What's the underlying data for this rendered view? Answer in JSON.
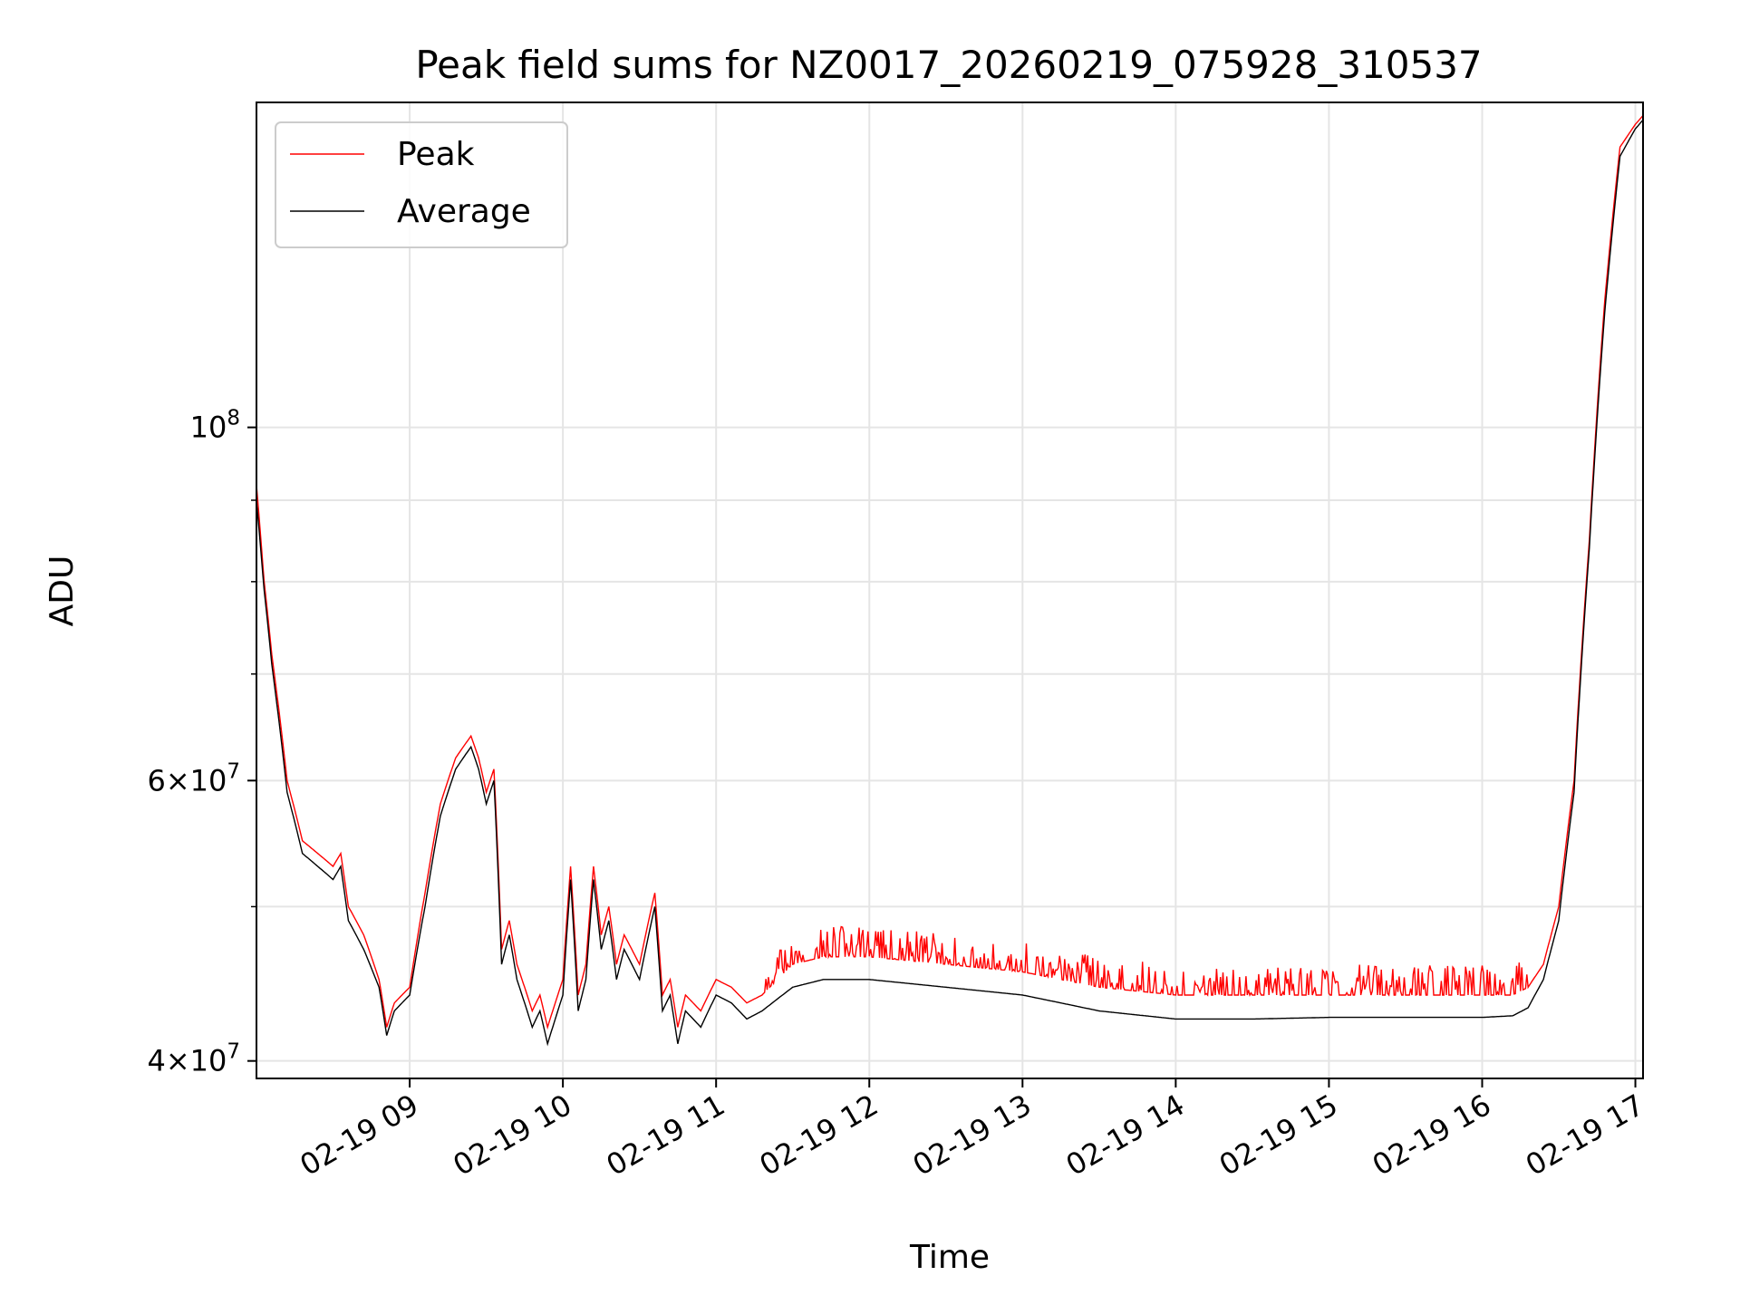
{
  "chart_data": {
    "type": "line",
    "title": "Peak field sums for NZ0017_20260219_075928_310537",
    "xlabel": "Time",
    "ylabel": "ADU",
    "yscale": "log",
    "ylim": [
      39000000,
      160000000
    ],
    "xlim_hours": [
      8.0,
      17.05
    ],
    "grid": true,
    "legend_location": "upper-left",
    "colors": {
      "peak": "#ff0000",
      "average": "#000000",
      "grid": "#e5e5e5"
    },
    "x_ticks": [
      {
        "hour": 9,
        "label": "02-19 09"
      },
      {
        "hour": 10,
        "label": "02-19 10"
      },
      {
        "hour": 11,
        "label": "02-19 11"
      },
      {
        "hour": 12,
        "label": "02-19 12"
      },
      {
        "hour": 13,
        "label": "02-19 13"
      },
      {
        "hour": 14,
        "label": "02-19 14"
      },
      {
        "hour": 15,
        "label": "02-19 15"
      },
      {
        "hour": 16,
        "label": "02-19 16"
      },
      {
        "hour": 17,
        "label": "02-19 17"
      }
    ],
    "y_major_ticks": [
      {
        "value": 40000000,
        "mant": "4",
        "base": "10",
        "exp": "7"
      },
      {
        "value": 60000000,
        "mant": "6",
        "base": "10",
        "exp": "7"
      },
      {
        "value": 100000000,
        "mant": "",
        "base": "10",
        "exp": "8"
      }
    ],
    "y_minor_values": [
      50000000,
      70000000,
      80000000,
      90000000
    ],
    "series": [
      {
        "name": "Peak",
        "x_hours": [
          8.0,
          8.05,
          8.1,
          8.15,
          8.2,
          8.3,
          8.4,
          8.5,
          8.55,
          8.6,
          8.7,
          8.8,
          8.85,
          8.9,
          9.0,
          9.1,
          9.2,
          9.3,
          9.4,
          9.45,
          9.5,
          9.55,
          9.6,
          9.65,
          9.7,
          9.8,
          9.85,
          9.9,
          10.0,
          10.05,
          10.1,
          10.15,
          10.2,
          10.25,
          10.3,
          10.35,
          10.4,
          10.5,
          10.6,
          10.65,
          10.7,
          10.75,
          10.8,
          10.9,
          11.0,
          11.1,
          11.2,
          11.3,
          11.5,
          11.7,
          12.0,
          12.5,
          13.0,
          13.5,
          14.0,
          14.5,
          15.0,
          15.5,
          16.0,
          16.2,
          16.3,
          16.4,
          16.5,
          16.6,
          16.7,
          16.8,
          16.9,
          17.0,
          17.05
        ],
        "y": [
          92000000,
          80000000,
          72000000,
          66000000,
          60000000,
          55000000,
          54000000,
          53000000,
          54000000,
          50000000,
          48000000,
          45000000,
          42000000,
          43500000,
          44500000,
          51000000,
          58000000,
          62000000,
          64000000,
          62000000,
          59000000,
          61000000,
          47000000,
          49000000,
          46000000,
          43000000,
          44000000,
          42000000,
          45000000,
          53000000,
          44000000,
          46000000,
          53000000,
          48000000,
          50000000,
          46000000,
          48000000,
          46000000,
          51000000,
          44000000,
          45000000,
          42000000,
          44000000,
          43000000,
          45000000,
          44500000,
          43500000,
          44000000,
          46000000,
          46500000,
          46500000,
          46000000,
          45500000,
          44500000,
          44000000,
          44000000,
          44000000,
          44000000,
          44000000,
          44000000,
          44500000,
          46000000,
          50000000,
          60000000,
          85000000,
          120000000,
          150000000,
          155000000,
          157000000
        ]
      },
      {
        "name": "Average",
        "x_hours": [
          8.0,
          8.05,
          8.1,
          8.15,
          8.2,
          8.3,
          8.4,
          8.5,
          8.55,
          8.6,
          8.7,
          8.8,
          8.85,
          8.9,
          9.0,
          9.1,
          9.2,
          9.3,
          9.4,
          9.45,
          9.5,
          9.55,
          9.6,
          9.65,
          9.7,
          9.8,
          9.85,
          9.9,
          10.0,
          10.05,
          10.1,
          10.15,
          10.2,
          10.25,
          10.3,
          10.35,
          10.4,
          10.5,
          10.6,
          10.65,
          10.7,
          10.75,
          10.8,
          10.9,
          11.0,
          11.1,
          11.2,
          11.3,
          11.5,
          11.7,
          12.0,
          12.5,
          13.0,
          13.5,
          14.0,
          14.5,
          15.0,
          15.5,
          16.0,
          16.2,
          16.3,
          16.4,
          16.5,
          16.6,
          16.7,
          16.8,
          16.9,
          17.0,
          17.05
        ],
        "y": [
          90000000,
          79000000,
          71000000,
          65000000,
          59000000,
          54000000,
          53000000,
          52000000,
          53000000,
          49000000,
          47000000,
          44500000,
          41500000,
          43000000,
          44000000,
          50000000,
          57000000,
          61000000,
          63000000,
          61000000,
          58000000,
          60000000,
          46000000,
          48000000,
          45000000,
          42000000,
          43000000,
          41000000,
          44000000,
          52000000,
          43000000,
          45000000,
          52000000,
          47000000,
          49000000,
          45000000,
          47000000,
          45000000,
          50000000,
          43000000,
          44000000,
          41000000,
          43000000,
          42000000,
          44000000,
          43500000,
          42500000,
          43000000,
          44500000,
          45000000,
          45000000,
          44500000,
          44000000,
          43000000,
          42500000,
          42500000,
          42600000,
          42600000,
          42600000,
          42700000,
          43200000,
          45000000,
          49000000,
          59000000,
          84000000,
          118000000,
          148000000,
          154000000,
          156000000
        ]
      }
    ]
  }
}
